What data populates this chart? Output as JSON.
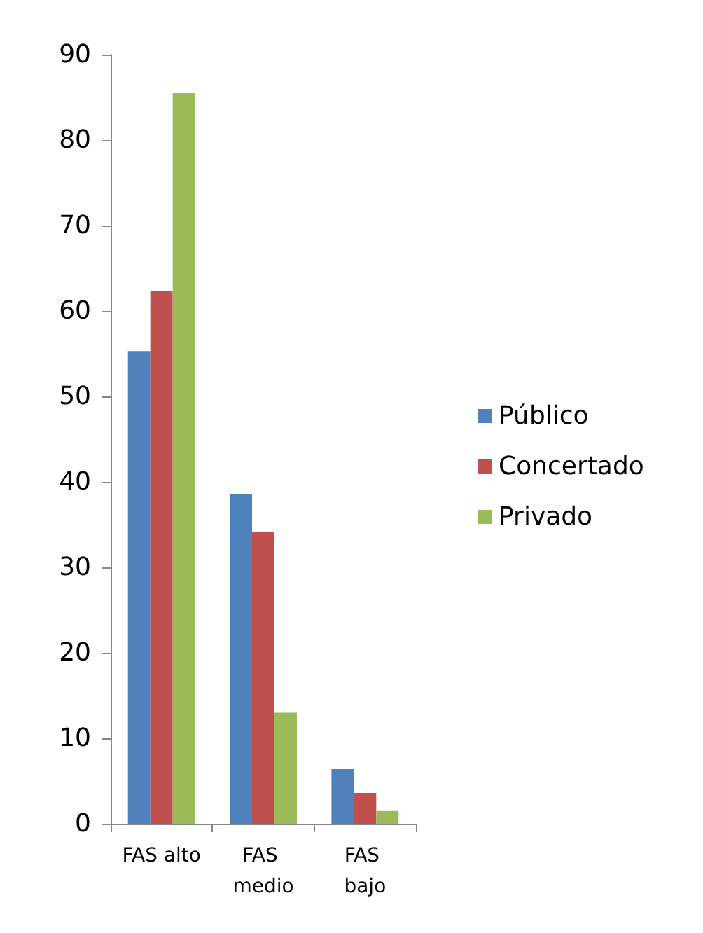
{
  "chart_data": {
    "type": "bar",
    "categories": [
      "FAS alto",
      "FAS medio",
      "FAS bajo"
    ],
    "series": [
      {
        "name": "Público",
        "color": "#4f81bd",
        "values": [
          55.3,
          38.6,
          6.4
        ]
      },
      {
        "name": "Concertado",
        "color": "#c0504d",
        "values": [
          62.3,
          34.1,
          3.6
        ]
      },
      {
        "name": "Privado",
        "color": "#9bbb59",
        "values": [
          85.5,
          13.0,
          1.5
        ]
      }
    ],
    "ylim": [
      0,
      90
    ],
    "yticks": [
      0,
      10,
      20,
      30,
      40,
      50,
      60,
      70,
      80,
      90
    ],
    "grid": false,
    "legend": "right"
  }
}
